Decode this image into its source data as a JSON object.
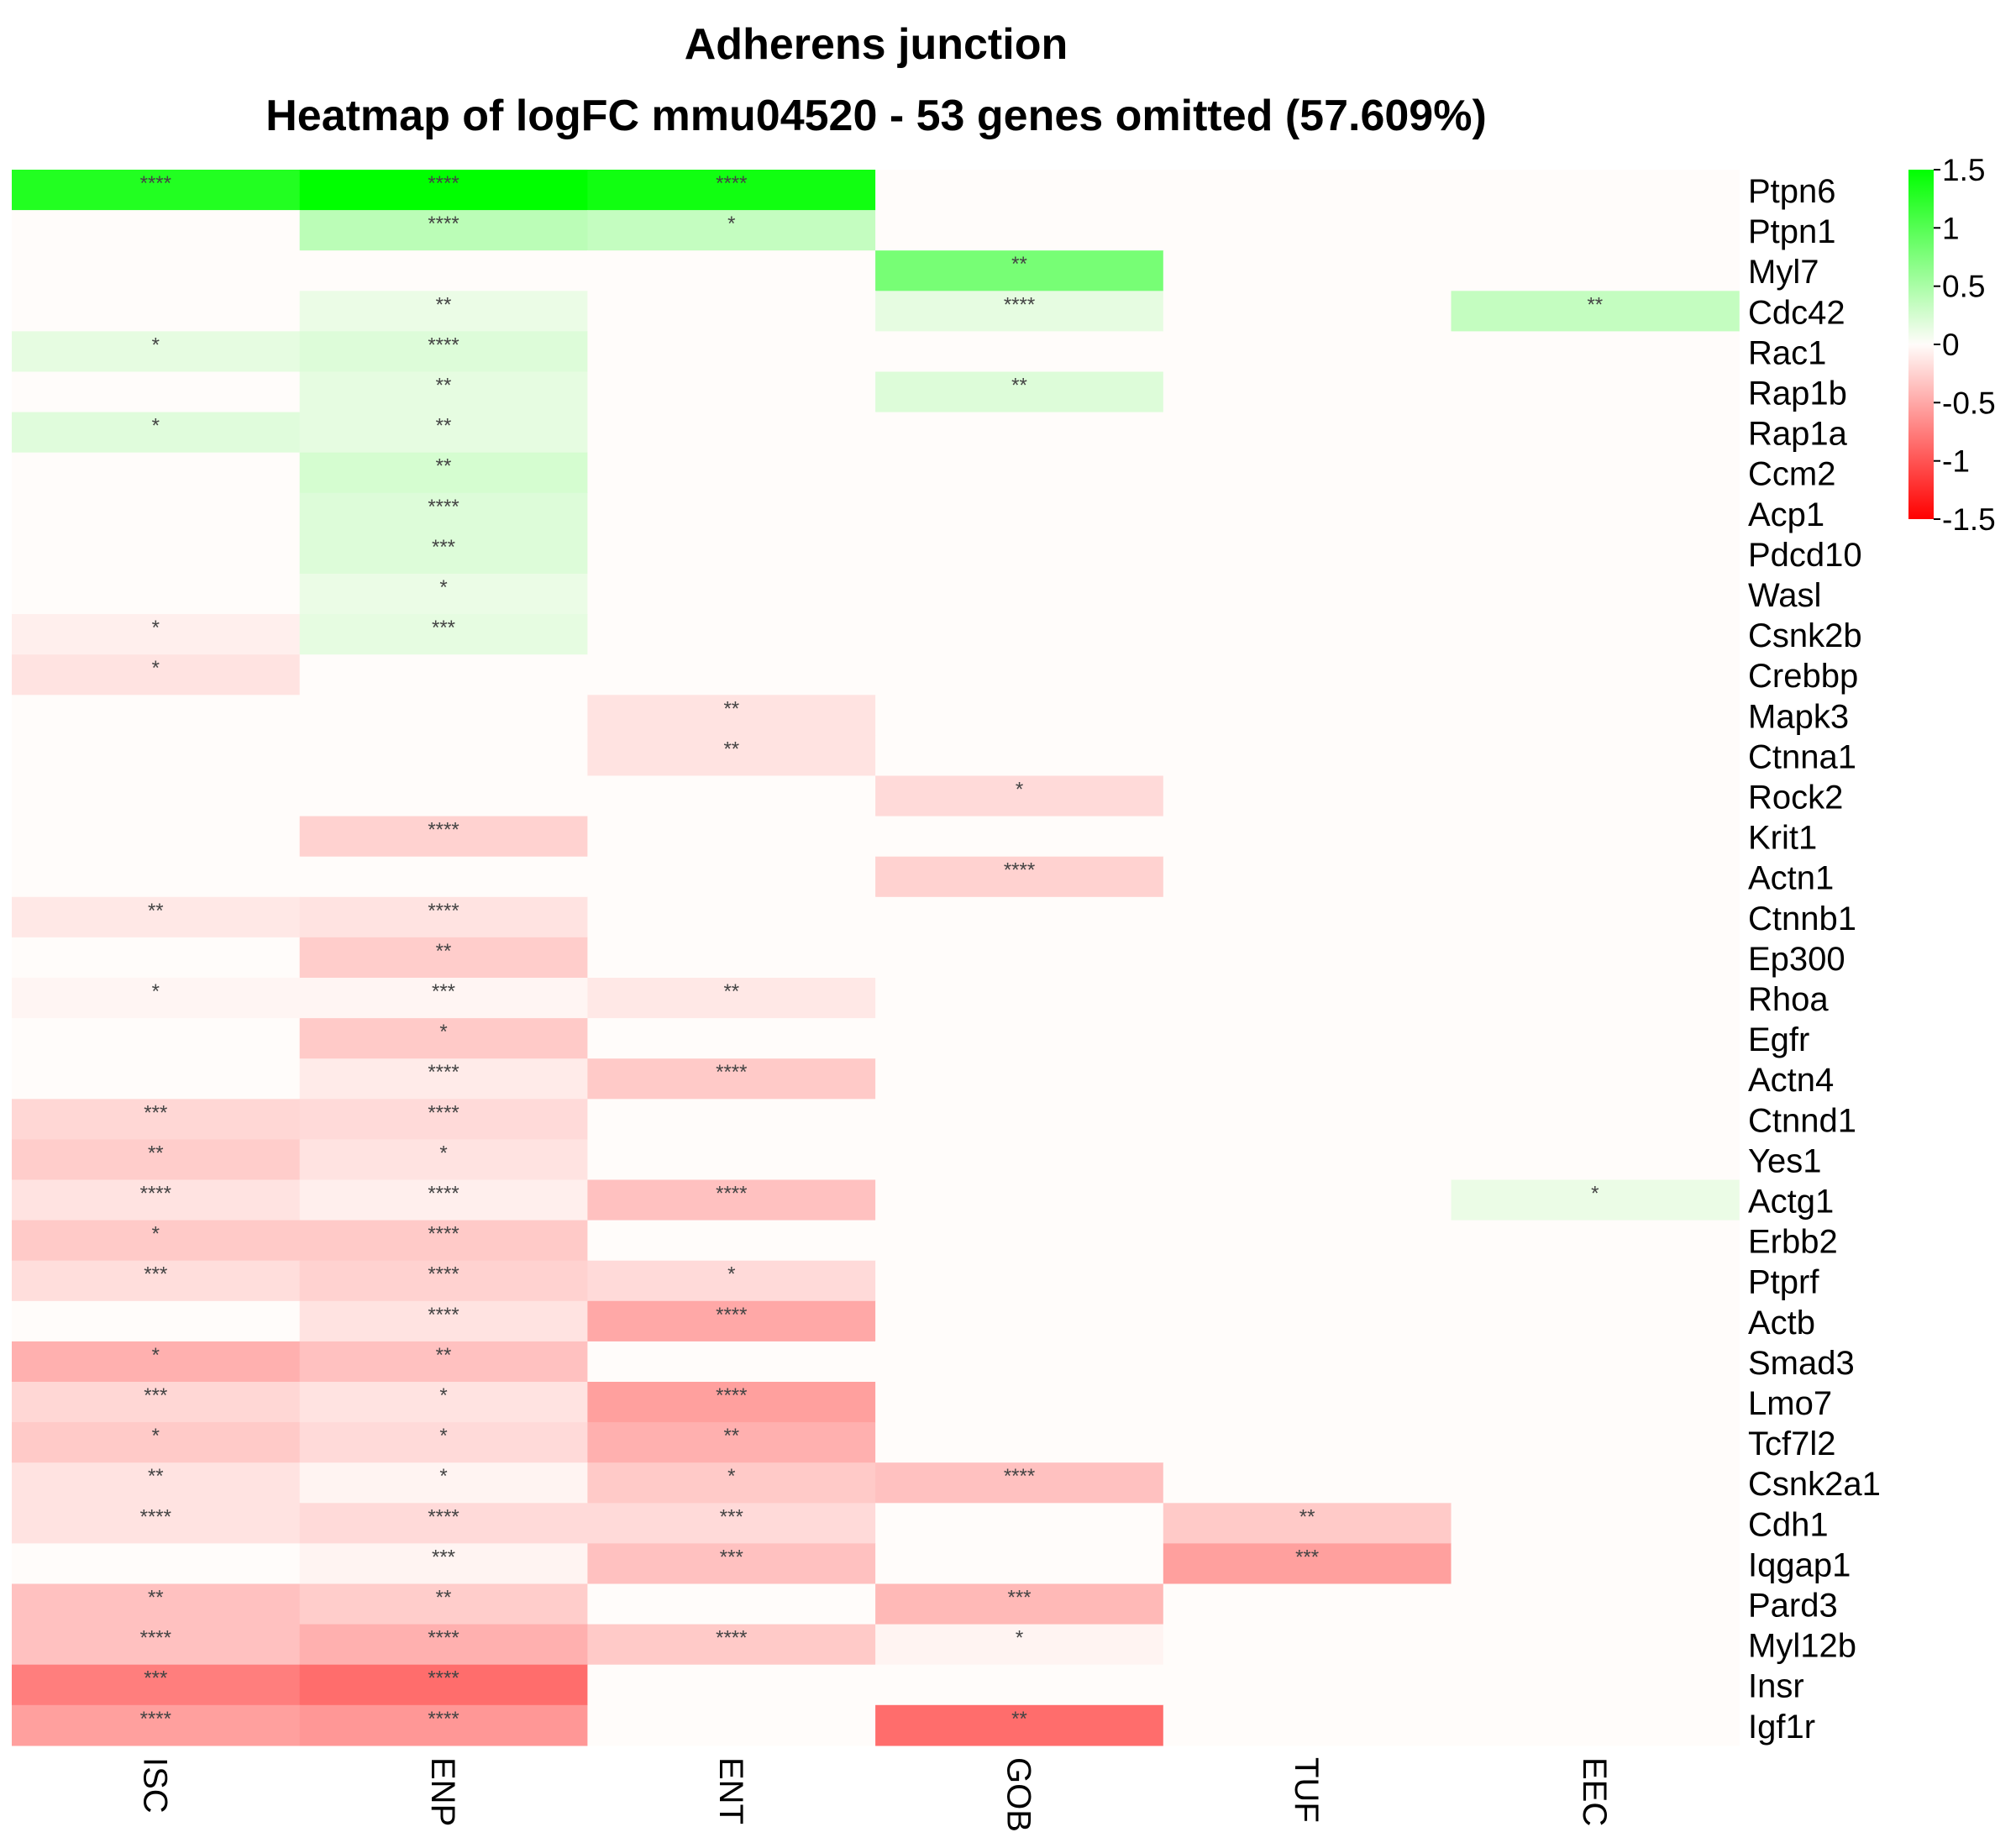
{
  "chart_data": {
    "type": "heatmap",
    "title": "Adherens junction",
    "subtitle": "Heatmap of logFC mmu04520 - 53 genes omitted (57.609%)",
    "columns": [
      "ISC",
      "ENP",
      "ENT",
      "GOB",
      "TUF",
      "EEC"
    ],
    "rows": [
      "Ptpn6",
      "Ptpn1",
      "Myl7",
      "Cdc42",
      "Rac1",
      "Rap1b",
      "Rap1a",
      "Ccm2",
      "Acp1",
      "Pdcd10",
      "Wasl",
      "Csnk2b",
      "Crebbp",
      "Mapk3",
      "Ctnna1",
      "Rock2",
      "Krit1",
      "Actn1",
      "Ctnnb1",
      "Ep300",
      "Rhoa",
      "Egfr",
      "Actn4",
      "Ctnnd1",
      "Yes1",
      "Actg1",
      "Erbb2",
      "Ptprf",
      "Actb",
      "Smad3",
      "Lmo7",
      "Tcf7l2",
      "Csnk2a1",
      "Cdh1",
      "Iqgap1",
      "Pard3",
      "Myl12b",
      "Insr",
      "Igf1r"
    ],
    "values": [
      [
        1.3,
        1.5,
        1.4,
        0,
        0,
        0
      ],
      [
        0,
        0.4,
        0.35,
        0,
        0,
        0
      ],
      [
        0,
        0,
        0,
        0.8,
        0,
        0
      ],
      [
        0,
        0.12,
        0,
        0.15,
        0,
        0.35
      ],
      [
        0.15,
        0.2,
        0,
        0,
        0,
        0
      ],
      [
        0,
        0.15,
        0,
        0.2,
        0,
        0
      ],
      [
        0.18,
        0.15,
        0,
        0,
        0,
        0
      ],
      [
        0,
        0.25,
        0,
        0,
        0,
        0
      ],
      [
        0,
        0.2,
        0,
        0,
        0,
        0
      ],
      [
        0,
        0.2,
        0,
        0,
        0,
        0
      ],
      [
        0,
        0.12,
        0,
        0,
        0,
        0
      ],
      [
        -0.08,
        0.15,
        0,
        0,
        0,
        0
      ],
      [
        -0.15,
        0,
        0,
        0,
        0,
        0
      ],
      [
        0,
        0,
        -0.15,
        0,
        0,
        0
      ],
      [
        0,
        0,
        -0.15,
        0,
        0,
        0
      ],
      [
        0,
        0,
        0,
        -0.2,
        0,
        0
      ],
      [
        0,
        -0.25,
        0,
        0,
        0,
        0
      ],
      [
        0,
        0,
        0,
        -0.25,
        0,
        0
      ],
      [
        -0.12,
        -0.15,
        0,
        0,
        0,
        0
      ],
      [
        0,
        -0.28,
        0,
        0,
        0,
        0
      ],
      [
        -0.04,
        -0.04,
        -0.12,
        0,
        0,
        0
      ],
      [
        0,
        -0.3,
        0,
        0,
        0,
        0
      ],
      [
        0,
        -0.1,
        -0.3,
        0,
        0,
        0
      ],
      [
        -0.22,
        -0.2,
        0,
        0,
        0,
        0
      ],
      [
        -0.28,
        -0.15,
        0,
        0,
        0,
        0
      ],
      [
        -0.15,
        -0.08,
        -0.35,
        0,
        0,
        0.12
      ],
      [
        -0.3,
        -0.3,
        0,
        0,
        0,
        0
      ],
      [
        -0.18,
        -0.25,
        -0.2,
        0,
        0,
        0
      ],
      [
        0,
        -0.15,
        -0.5,
        0,
        0,
        0
      ],
      [
        -0.45,
        -0.35,
        0,
        0,
        0,
        0
      ],
      [
        -0.22,
        -0.15,
        -0.55,
        0,
        0,
        0
      ],
      [
        -0.3,
        -0.2,
        -0.45,
        0,
        0,
        0
      ],
      [
        -0.15,
        -0.05,
        -0.3,
        -0.35,
        0,
        0
      ],
      [
        -0.15,
        -0.2,
        -0.2,
        0,
        -0.3,
        0
      ],
      [
        0,
        -0.05,
        -0.35,
        0,
        -0.55,
        0
      ],
      [
        -0.35,
        -0.28,
        0,
        -0.4,
        0,
        0
      ],
      [
        -0.35,
        -0.45,
        -0.3,
        -0.05,
        0,
        0
      ],
      [
        -0.75,
        -0.85,
        0,
        0,
        0,
        0
      ],
      [
        -0.55,
        -0.6,
        0,
        -0.85,
        0,
        0
      ]
    ],
    "significance": [
      [
        "****",
        "****",
        "****",
        "",
        "",
        ""
      ],
      [
        "",
        "****",
        "*",
        "",
        "",
        ""
      ],
      [
        "",
        "",
        "",
        "**",
        "",
        ""
      ],
      [
        "",
        "**",
        "",
        "****",
        "",
        "**"
      ],
      [
        "*",
        "****",
        "",
        "",
        "",
        ""
      ],
      [
        "",
        "**",
        "",
        "**",
        "",
        ""
      ],
      [
        "*",
        "**",
        "",
        "",
        "",
        ""
      ],
      [
        "",
        "**",
        "",
        "",
        "",
        ""
      ],
      [
        "",
        "****",
        "",
        "",
        "",
        ""
      ],
      [
        "",
        "***",
        "",
        "",
        "",
        ""
      ],
      [
        "",
        "*",
        "",
        "",
        "",
        ""
      ],
      [
        "*",
        "***",
        "",
        "",
        "",
        ""
      ],
      [
        "*",
        "",
        "",
        "",
        "",
        ""
      ],
      [
        "",
        "",
        "**",
        "",
        "",
        ""
      ],
      [
        "",
        "",
        "**",
        "",
        "",
        ""
      ],
      [
        "",
        "",
        "",
        "*",
        "",
        ""
      ],
      [
        "",
        "****",
        "",
        "",
        "",
        ""
      ],
      [
        "",
        "",
        "",
        "****",
        "",
        ""
      ],
      [
        "**",
        "****",
        "",
        "",
        "",
        ""
      ],
      [
        "",
        "**",
        "",
        "",
        "",
        ""
      ],
      [
        "*",
        "***",
        "**",
        "",
        "",
        ""
      ],
      [
        "",
        "*",
        "",
        "",
        "",
        ""
      ],
      [
        "",
        "****",
        "****",
        "",
        "",
        ""
      ],
      [
        "***",
        "****",
        "",
        "",
        "",
        ""
      ],
      [
        "**",
        "*",
        "",
        "",
        "",
        ""
      ],
      [
        "****",
        "****",
        "****",
        "",
        "",
        "*"
      ],
      [
        "*",
        "****",
        "",
        "",
        "",
        ""
      ],
      [
        "***",
        "****",
        "*",
        "",
        "",
        ""
      ],
      [
        "",
        "****",
        "****",
        "",
        "",
        ""
      ],
      [
        "*",
        "**",
        "",
        "",
        "",
        ""
      ],
      [
        "***",
        "*",
        "****",
        "",
        "",
        ""
      ],
      [
        "*",
        "*",
        "**",
        "",
        "",
        ""
      ],
      [
        "**",
        "*",
        "*",
        "****",
        "",
        ""
      ],
      [
        "****",
        "****",
        "***",
        "",
        "**",
        ""
      ],
      [
        "",
        "***",
        "***",
        "",
        "***",
        ""
      ],
      [
        "**",
        "**",
        "",
        "***",
        "",
        ""
      ],
      [
        "****",
        "****",
        "****",
        "*",
        "",
        ""
      ],
      [
        "***",
        "****",
        "",
        "",
        "",
        ""
      ],
      [
        "****",
        "****",
        "",
        "**",
        "",
        ""
      ]
    ],
    "colorbar": {
      "min": -1.5,
      "max": 1.5,
      "ticks": [
        "1.5",
        "1",
        "0.5",
        "0",
        "-0.5",
        "-1",
        "-1.5"
      ],
      "low_color": "#ff0000",
      "mid_color": "#fffcfa",
      "high_color": "#00ff00"
    }
  }
}
